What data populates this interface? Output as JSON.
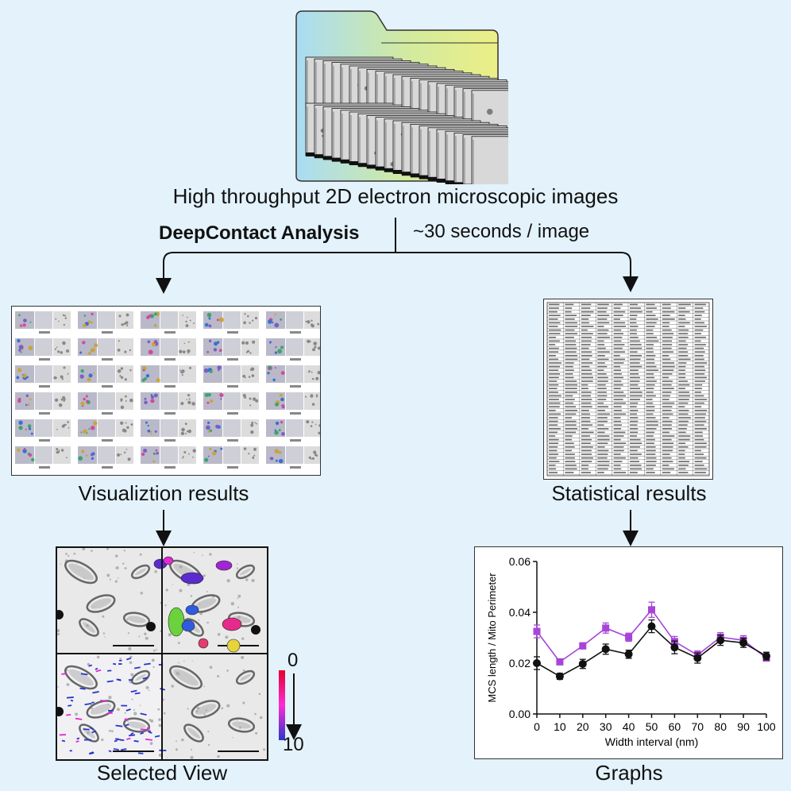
{
  "labels": {
    "top": "High throughput 2D electron microscopic images",
    "analysis": "DeepContact Analysis",
    "speed": "~30 seconds / image",
    "left": "Visualiztion results",
    "right": "Statistical results",
    "selected": "Selected View",
    "graphs": "Graphs"
  },
  "colorbar": {
    "top": "0",
    "bottom": "10",
    "colors": [
      "#e4002b",
      "#ff2bd6",
      "#2b36c8"
    ]
  },
  "colors": {
    "background": "#e3f2fb",
    "folder_left": "#a9dcf4",
    "folder_right": "#e8ef8a",
    "series_purple": "#a845d8",
    "series_black": "#111111"
  },
  "chart_data": {
    "type": "line",
    "xlabel": "Width interval (nm)",
    "ylabel": "MCS length / Mito Perimeter",
    "x": [
      0,
      10,
      20,
      30,
      40,
      50,
      60,
      70,
      80,
      90,
      100
    ],
    "xticks": [
      "0",
      "10",
      "20",
      "30",
      "40",
      "50",
      "60",
      "70",
      "80",
      "90",
      "100"
    ],
    "yticks": [
      "0.00",
      "0.02",
      "0.04",
      "0.06"
    ],
    "ylim": [
      0,
      0.06
    ],
    "xlim": [
      0,
      100
    ],
    "series": [
      {
        "color": "#a845d8",
        "marker": "square",
        "values": [
          0.0325,
          0.0205,
          0.0268,
          0.0338,
          0.0302,
          0.041,
          0.0285,
          0.0232,
          0.0302,
          0.029,
          0.022
        ],
        "errors": [
          0.0025,
          0.0008,
          0.0012,
          0.002,
          0.0016,
          0.003,
          0.002,
          0.0016,
          0.0018,
          0.0018,
          0.0012
        ]
      },
      {
        "color": "#111111",
        "marker": "circle",
        "values": [
          0.02,
          0.0148,
          0.0197,
          0.0255,
          0.0235,
          0.0345,
          0.0262,
          0.022,
          0.029,
          0.028,
          0.0228
        ],
        "errors": [
          0.0025,
          0.0012,
          0.0018,
          0.002,
          0.0016,
          0.0025,
          0.0025,
          0.002,
          0.002,
          0.0018,
          0.0015
        ]
      }
    ],
    "grid": false
  }
}
